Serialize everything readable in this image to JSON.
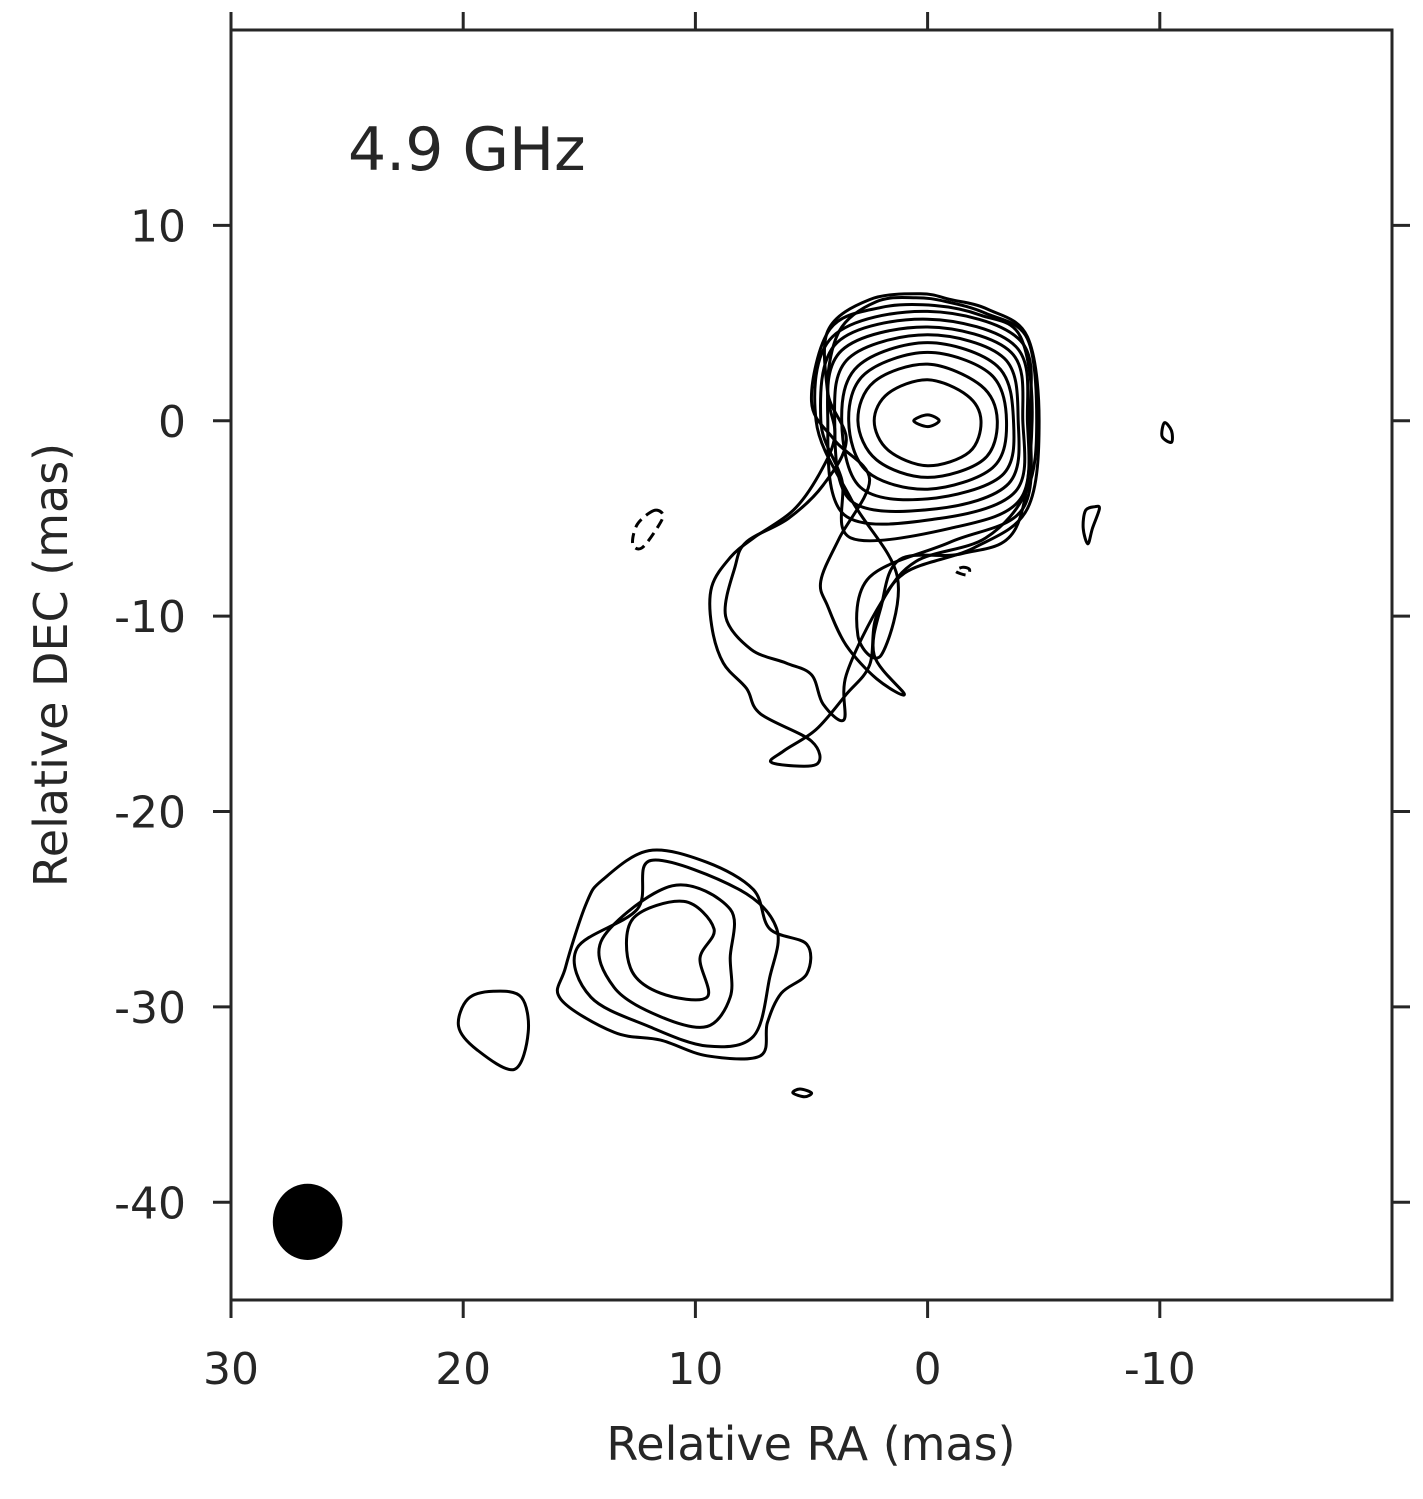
{
  "chart_data": {
    "type": "contour",
    "annotation": "4.9 GHz",
    "xlabel": "Relative RA (mas)",
    "ylabel": "Relative DEC (mas)",
    "xlim": [
      30,
      -20
    ],
    "ylim": [
      -45,
      20
    ],
    "xticks": [
      30,
      20,
      10,
      0,
      -10
    ],
    "yticks": [
      10,
      0,
      -10,
      -20,
      -30,
      -40
    ],
    "xtick_labels": [
      "30",
      "20",
      "10",
      "0",
      "-10"
    ],
    "ytick_labels": [
      "10",
      "0",
      "-10",
      "-20",
      "-30",
      "-40"
    ],
    "colors": {
      "axes": "#262626",
      "contour": "#000000",
      "beam": "#000000"
    },
    "beam": {
      "center": [
        26.7,
        -41.0
      ],
      "width": 3.0,
      "height": 3.9
    },
    "core": {
      "center": [
        0,
        0
      ]
    },
    "contours": [
      {
        "name": "core-contour-1",
        "negative": false,
        "points": [
          [
            0.0,
            0.3
          ],
          [
            -0.5,
            0
          ],
          [
            0,
            -0.3
          ],
          [
            0.6,
            0
          ]
        ]
      },
      {
        "name": "core-contour-2",
        "negative": false,
        "points": [
          [
            0,
            2.1
          ],
          [
            -1.7,
            1.3
          ],
          [
            -2.3,
            0
          ],
          [
            -1.8,
            -1.6
          ],
          [
            0,
            -2.3
          ],
          [
            1.7,
            -1.5
          ],
          [
            2.3,
            0
          ],
          [
            1.7,
            1.4
          ]
        ]
      },
      {
        "name": "core-contour-3",
        "negative": false,
        "points": [
          [
            0,
            2.9
          ],
          [
            -2.3,
            1.8
          ],
          [
            -3.0,
            0
          ],
          [
            -2.4,
            -2.0
          ],
          [
            0,
            -2.9
          ],
          [
            2.2,
            -2.0
          ],
          [
            3.0,
            0
          ],
          [
            2.3,
            2.0
          ]
        ]
      },
      {
        "name": "core-contour-4",
        "negative": false,
        "points": [
          [
            0,
            3.5
          ],
          [
            -2.7,
            2.4
          ],
          [
            -3.4,
            0
          ],
          [
            -2.8,
            -2.4
          ],
          [
            0,
            -3.5
          ],
          [
            2.6,
            -2.6
          ],
          [
            3.4,
            0
          ],
          [
            2.7,
            2.4
          ]
        ]
      },
      {
        "name": "core-contour-5",
        "negative": false,
        "points": [
          [
            0,
            4.0
          ],
          [
            -3.0,
            2.8
          ],
          [
            -3.7,
            0
          ],
          [
            -3.2,
            -2.8
          ],
          [
            0,
            -4.0
          ],
          [
            2.9,
            -3.4
          ],
          [
            3.7,
            0
          ],
          [
            3.0,
            2.8
          ]
        ]
      },
      {
        "name": "core-contour-6",
        "negative": false,
        "points": [
          [
            0,
            4.4
          ],
          [
            -3.3,
            3.2
          ],
          [
            -3.9,
            0
          ],
          [
            -3.5,
            -3.2
          ],
          [
            -0.4,
            -4.5
          ],
          [
            3.3,
            -4.1
          ],
          [
            4.0,
            0
          ],
          [
            3.4,
            3.2
          ]
        ]
      },
      {
        "name": "core-contour-7",
        "negative": false,
        "points": [
          [
            0,
            4.8
          ],
          [
            -3.6,
            3.5
          ],
          [
            -4.1,
            0
          ],
          [
            -3.8,
            -3.6
          ],
          [
            -0.5,
            -5.0
          ],
          [
            3.6,
            -4.8
          ],
          [
            4.3,
            0
          ],
          [
            3.7,
            3.6
          ]
        ]
      },
      {
        "name": "core-contour-8",
        "negative": false,
        "points": [
          [
            0,
            5.2
          ],
          [
            -3.8,
            3.8
          ],
          [
            -4.3,
            0
          ],
          [
            -4.0,
            -4.0
          ],
          [
            -1.0,
            -5.5
          ],
          [
            3.3,
            -6.0
          ],
          [
            3.7,
            -3.0
          ],
          [
            4.6,
            0
          ],
          [
            3.9,
            4.0
          ]
        ]
      },
      {
        "name": "core-contour-9",
        "negative": false,
        "points": [
          [
            0,
            5.6
          ],
          [
            -4.0,
            4.1
          ],
          [
            -4.4,
            0
          ],
          [
            -4.1,
            -4.5
          ],
          [
            -1.0,
            -6.2
          ],
          [
            2.5,
            -8.0
          ],
          [
            3.0,
            -11.0
          ],
          [
            2.0,
            -12.0
          ],
          [
            1.3,
            -8.0
          ],
          [
            3.3,
            -4.0
          ],
          [
            4.8,
            0
          ],
          [
            4.1,
            4.3
          ]
        ]
      },
      {
        "name": "core-contour-10",
        "negative": false,
        "points": [
          [
            -0.3,
            5.9
          ],
          [
            -2.3,
            5.4
          ],
          [
            -4.0,
            4.3
          ],
          [
            -4.5,
            0
          ],
          [
            -3.8,
            -5.5
          ],
          [
            -1.5,
            -6.8
          ],
          [
            1.2,
            -7.1
          ],
          [
            2.0,
            -9.5
          ],
          [
            2.3,
            -12.0
          ],
          [
            1.0,
            -14.0
          ],
          [
            2.2,
            -13.2
          ],
          [
            3.5,
            -11.5
          ],
          [
            4.3,
            -9.5
          ],
          [
            4.6,
            -8.2
          ],
          [
            3.8,
            -6.0
          ],
          [
            2.5,
            -3.0
          ],
          [
            4.0,
            -1.0
          ],
          [
            5.0,
            1.0
          ],
          [
            4.2,
            4.7
          ],
          [
            2.0,
            5.8
          ]
        ]
      },
      {
        "name": "core-contour-11",
        "negative": false,
        "points": [
          [
            -0.8,
            6.1
          ],
          [
            -2.5,
            5.5
          ],
          [
            -4.3,
            4.2
          ],
          [
            -4.7,
            0
          ],
          [
            -4.3,
            -3.5
          ],
          [
            -2.5,
            -6.0
          ],
          [
            0.5,
            -7.2
          ],
          [
            2.0,
            -9.3
          ],
          [
            3.5,
            -13.0
          ],
          [
            3.6,
            -15.3
          ],
          [
            4.5,
            -14.5
          ],
          [
            5.0,
            -13.0
          ],
          [
            6.1,
            -12.4
          ],
          [
            7.6,
            -11.7
          ],
          [
            8.7,
            -10.0
          ],
          [
            8.3,
            -7.5
          ],
          [
            7.8,
            -6.2
          ],
          [
            6.0,
            -5.0
          ],
          [
            4.5,
            -3.3
          ],
          [
            3.5,
            -1.0
          ],
          [
            4.3,
            1.5
          ],
          [
            3.8,
            4.6
          ],
          [
            2.2,
            6.1
          ],
          [
            0.5,
            6.3
          ]
        ]
      },
      {
        "name": "core-contour-12",
        "negative": false,
        "points": [
          [
            -1.0,
            6.2
          ],
          [
            -2.6,
            5.7
          ],
          [
            -4.3,
            4.3
          ],
          [
            -4.8,
            0
          ],
          [
            -4.3,
            -4.5
          ],
          [
            -2.0,
            -6.5
          ],
          [
            1.0,
            -7.8
          ],
          [
            2.2,
            -10.0
          ],
          [
            2.5,
            -12.5
          ],
          [
            3.5,
            -14.0
          ],
          [
            4.8,
            -15.8
          ],
          [
            6.2,
            -16.9
          ],
          [
            6.7,
            -17.5
          ],
          [
            4.8,
            -17.6
          ],
          [
            5.0,
            -16.4
          ],
          [
            7.2,
            -15.0
          ],
          [
            7.8,
            -13.7
          ],
          [
            8.8,
            -12.4
          ],
          [
            9.3,
            -10.5
          ],
          [
            9.3,
            -8.5
          ],
          [
            8.5,
            -7.0
          ],
          [
            7.5,
            -6.0
          ],
          [
            5.8,
            -4.6
          ],
          [
            4.7,
            -2.8
          ],
          [
            4.0,
            -0.8
          ],
          [
            4.3,
            1.3
          ],
          [
            4.3,
            4.6
          ],
          [
            2.5,
            6.2
          ],
          [
            0.3,
            6.5
          ]
        ]
      },
      {
        "name": "jet-contour-1",
        "negative": false,
        "points": [
          [
            11.9,
            -22.5
          ],
          [
            8.1,
            -24.0
          ],
          [
            6.5,
            -26.0
          ],
          [
            6.8,
            -28.5
          ],
          [
            7.5,
            -31.5
          ],
          [
            9.5,
            -32.0
          ],
          [
            12.0,
            -31.0
          ],
          [
            14.5,
            -29.5
          ],
          [
            15.1,
            -27.0
          ],
          [
            12.5,
            -25.0
          ]
        ]
      },
      {
        "name": "jet-contour-2",
        "negative": false,
        "points": [
          [
            11.0,
            -23.8
          ],
          [
            8.5,
            -25.0
          ],
          [
            8.5,
            -27.5
          ],
          [
            8.5,
            -29.5
          ],
          [
            9.5,
            -31.0
          ],
          [
            11.5,
            -30.5
          ],
          [
            13.5,
            -29.0
          ],
          [
            14.0,
            -26.5
          ]
        ]
      },
      {
        "name": "jet-contour-3",
        "negative": false,
        "points": [
          [
            10.5,
            -24.6
          ],
          [
            9.2,
            -26.0
          ],
          [
            9.8,
            -27.5
          ],
          [
            9.5,
            -29.5
          ],
          [
            11.5,
            -29.3
          ],
          [
            12.8,
            -28.0
          ],
          [
            12.7,
            -25.5
          ]
        ]
      },
      {
        "name": "jet-contour-4",
        "negative": false,
        "points": [
          [
            12.0,
            -22.0
          ],
          [
            9.5,
            -22.6
          ],
          [
            7.5,
            -24.0
          ],
          [
            6.8,
            -26.0
          ],
          [
            5.2,
            -26.8
          ],
          [
            5.2,
            -28.3
          ],
          [
            6.3,
            -29.3
          ],
          [
            6.9,
            -30.8
          ],
          [
            7.2,
            -32.5
          ],
          [
            9.5,
            -32.5
          ],
          [
            11.5,
            -31.7
          ],
          [
            13.5,
            -31.3
          ],
          [
            15.8,
            -29.6
          ],
          [
            15.6,
            -28.0
          ],
          [
            14.7,
            -24.7
          ],
          [
            14.0,
            -23.5
          ]
        ]
      },
      {
        "name": "knot-contour-1",
        "negative": false,
        "points": [
          [
            18.7,
            -29.2
          ],
          [
            17.5,
            -29.5
          ],
          [
            17.2,
            -31.3
          ],
          [
            17.8,
            -33.2
          ],
          [
            19.4,
            -32.2
          ],
          [
            20.2,
            -31.0
          ],
          [
            19.8,
            -29.6
          ]
        ]
      },
      {
        "name": "knot-contour-2",
        "negative": false,
        "points": [
          [
            5.5,
            -34.2
          ],
          [
            5.0,
            -34.4
          ],
          [
            5.3,
            -34.6
          ],
          [
            5.8,
            -34.4
          ]
        ]
      },
      {
        "name": "neg-contour-1",
        "negative": true,
        "points": [
          [
            11.8,
            -4.6
          ],
          [
            11.4,
            -4.8
          ],
          [
            11.6,
            -5.4
          ],
          [
            12.3,
            -6.5
          ],
          [
            12.7,
            -6.3
          ],
          [
            12.5,
            -5.3
          ]
        ]
      },
      {
        "name": "neg-contour-2",
        "negative": true,
        "points": [
          [
            -1.5,
            -7.5
          ],
          [
            -1.8,
            -7.6
          ],
          [
            -1.7,
            -7.9
          ],
          [
            -1.2,
            -7.7
          ]
        ]
      },
      {
        "name": "spur-contour-1",
        "negative": false,
        "points": [
          [
            -7.4,
            -4.5
          ],
          [
            -7.1,
            -5.5
          ],
          [
            -6.9,
            -6.3
          ],
          [
            -6.7,
            -5.5
          ],
          [
            -6.8,
            -4.6
          ],
          [
            -7.2,
            -4.4
          ]
        ]
      },
      {
        "name": "spur-contour-2",
        "negative": false,
        "points": [
          [
            -10.2,
            -0.1
          ],
          [
            -10.5,
            -0.5
          ],
          [
            -10.5,
            -1.1
          ],
          [
            -10.1,
            -0.8
          ]
        ]
      }
    ]
  }
}
